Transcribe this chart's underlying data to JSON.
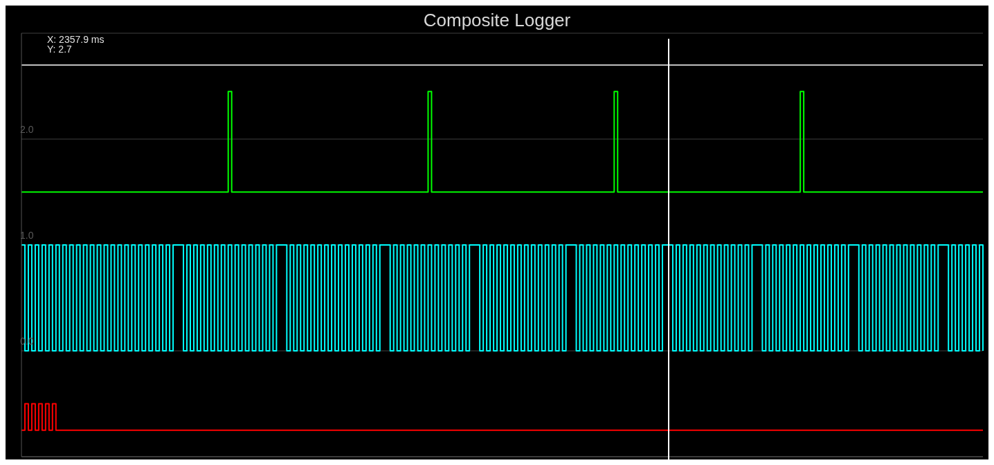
{
  "chart_data": {
    "type": "step",
    "title": "Composite Logger",
    "annotations": [
      "X: 2357.9 ms",
      "Y: 2.7"
    ],
    "categories": [
      null,
      null,
      null,
      null,
      null,
      null,
      null,
      null,
      null,
      null,
      null,
      null,
      null,
      null,
      null,
      null,
      null,
      null,
      null,
      null,
      null,
      null,
      null,
      null,
      null,
      null,
      null,
      null,
      null,
      null,
      null,
      null,
      null,
      null,
      null,
      null,
      null,
      null,
      null,
      null,
      null,
      null,
      null,
      null,
      null,
      null,
      null,
      null,
      null,
      null,
      null,
      null,
      null,
      null,
      null,
      null,
      null,
      null,
      null,
      null,
      null,
      null,
      null,
      null,
      null,
      null,
      null,
      null,
      null,
      null,
      null,
      null,
      null,
      null,
      null,
      null,
      null,
      null,
      null,
      null,
      null,
      null,
      null,
      null,
      null,
      null,
      null,
      null,
      null,
      null,
      null,
      null,
      null,
      null,
      null,
      null,
      null,
      null,
      null,
      null,
      null,
      null,
      null,
      null,
      null,
      null,
      null,
      null,
      null,
      null,
      null,
      null,
      null,
      null,
      null,
      null,
      null,
      null,
      null,
      null,
      null,
      null,
      null,
      null,
      null,
      null,
      null,
      null,
      null,
      null,
      null,
      null,
      null,
      null,
      null,
      null,
      null,
      null,
      null,
      null,
      null,
      null,
      null,
      null,
      null,
      null,
      null,
      null,
      null,
      null,
      null,
      null,
      null,
      null,
      null,
      null,
      null,
      null,
      null,
      null,
      null,
      null,
      null,
      null,
      null,
      null,
      null,
      null,
      null,
      null,
      null,
      null,
      null,
      null,
      null,
      null,
      null,
      null,
      null,
      null,
      null,
      null,
      null,
      null,
      null,
      null,
      null,
      null,
      null,
      null,
      null,
      null,
      null,
      null,
      null,
      null,
      null,
      null,
      null,
      null,
      null,
      null,
      null,
      null,
      null,
      null,
      null,
      null,
      null,
      null,
      null,
      null,
      null,
      null,
      null,
      null,
      null,
      null,
      null,
      null,
      null,
      null,
      null,
      null,
      null,
      null,
      null,
      null,
      null,
      null,
      null,
      null,
      null,
      null,
      null,
      null,
      null,
      null,
      null,
      null,
      null,
      null,
      null,
      null,
      null,
      null,
      null,
      null,
      null,
      null,
      null,
      null,
      null,
      null,
      null,
      null,
      null,
      null,
      null,
      null,
      null,
      null,
      null,
      null,
      null,
      null,
      null,
      null,
      null,
      null,
      null,
      null,
      null,
      null,
      null,
      null,
      null,
      null,
      null,
      null
    ],
    "series": [
      {
        "color": "#00ff00",
        "values": [
          1.5,
          1.5,
          1.5,
          1.5,
          1.5,
          1.5,
          1.5,
          1.5,
          1.5,
          1.5,
          1.5,
          1.5,
          1.5,
          1.5,
          1.5,
          1.5,
          1.5,
          1.5,
          1.5,
          1.5,
          1.5,
          1.5,
          1.5,
          1.5,
          1.5,
          1.5,
          1.5,
          1.5,
          1.5,
          1.5,
          1.5,
          1.5,
          1.5,
          1.5,
          1.5,
          1.5,
          1.5,
          1.5,
          1.5,
          1.5,
          1.5,
          1.5,
          1.5,
          1.5,
          1.5,
          1.5,
          1.5,
          1.5,
          1.5,
          1.5,
          1.5,
          1.5,
          1.5,
          1.5,
          1.5,
          1.5,
          1.5,
          1.5,
          1.5,
          1.5,
          2.45,
          1.5,
          1.5,
          1.5,
          1.5,
          1.5,
          1.5,
          1.5,
          1.5,
          1.5,
          1.5,
          1.5,
          1.5,
          1.5,
          1.5,
          1.5,
          1.5,
          1.5,
          1.5,
          1.5,
          1.5,
          1.5,
          1.5,
          1.5,
          1.5,
          1.5,
          1.5,
          1.5,
          1.5,
          1.5,
          1.5,
          1.5,
          1.5,
          1.5,
          1.5,
          1.5,
          1.5,
          1.5,
          1.5,
          1.5,
          1.5,
          1.5,
          1.5,
          1.5,
          1.5,
          1.5,
          1.5,
          1.5,
          1.5,
          1.5,
          1.5,
          1.5,
          1.5,
          1.5,
          1.5,
          1.5,
          1.5,
          1.5,
          2.45,
          1.5,
          1.5,
          1.5,
          1.5,
          1.5,
          1.5,
          1.5,
          1.5,
          1.5,
          1.5,
          1.5,
          1.5,
          1.5,
          1.5,
          1.5,
          1.5,
          1.5,
          1.5,
          1.5,
          1.5,
          1.5,
          1.5,
          1.5,
          1.5,
          1.5,
          1.5,
          1.5,
          1.5,
          1.5,
          1.5,
          1.5,
          1.5,
          1.5,
          1.5,
          1.5,
          1.5,
          1.5,
          1.5,
          1.5,
          1.5,
          1.5,
          1.5,
          1.5,
          1.5,
          1.5,
          1.5,
          1.5,
          1.5,
          1.5,
          1.5,
          1.5,
          1.5,
          1.5,
          2.45,
          1.5,
          1.5,
          1.5,
          1.5,
          1.5,
          1.5,
          1.5,
          1.5,
          1.5,
          1.5,
          1.5,
          1.5,
          1.5,
          1.5,
          1.5,
          1.5,
          1.5,
          1.5,
          1.5,
          1.5,
          1.5,
          1.5,
          1.5,
          1.5,
          1.5,
          1.5,
          1.5,
          1.5,
          1.5,
          1.5,
          1.5,
          1.5,
          1.5,
          1.5,
          1.5,
          1.5,
          1.5,
          1.5,
          1.5,
          1.5,
          1.5,
          1.5,
          1.5,
          1.5,
          1.5,
          1.5,
          1.5,
          1.5,
          1.5,
          1.5,
          1.5,
          1.5,
          1.5,
          2.45,
          1.5,
          1.5,
          1.5,
          1.5,
          1.5,
          1.5,
          1.5,
          1.5,
          1.5,
          1.5,
          1.5,
          1.5,
          1.5,
          1.5,
          1.5,
          1.5,
          1.5,
          1.5,
          1.5,
          1.5,
          1.5,
          1.5,
          1.5,
          1.5,
          1.5,
          1.5,
          1.5,
          1.5,
          1.5,
          1.5,
          1.5,
          1.5,
          1.5,
          1.5,
          1.5,
          1.5,
          1.5,
          1.5,
          1.5,
          1.5,
          1.5,
          1.5,
          1.5,
          1.5,
          1.5,
          1.5,
          1.5,
          1.5,
          1.5,
          1.5,
          1.5,
          1.5,
          1.5
        ]
      },
      {
        "color": "#00ffff",
        "values": [
          1,
          0,
          1,
          0,
          1,
          0,
          1,
          0,
          1,
          0,
          1,
          0,
          1,
          0,
          1,
          0,
          1,
          0,
          1,
          0,
          1,
          0,
          1,
          0,
          1,
          0,
          1,
          0,
          1,
          0,
          1,
          0,
          1,
          0,
          1,
          0,
          1,
          0,
          1,
          0,
          1,
          0,
          1,
          0,
          1,
          1,
          1,
          0,
          1,
          0,
          1,
          0,
          1,
          0,
          1,
          0,
          1,
          0,
          1,
          0,
          1,
          0,
          1,
          0,
          1,
          0,
          1,
          0,
          1,
          0,
          1,
          0,
          1,
          0,
          1,
          1,
          1,
          0,
          1,
          0,
          1,
          0,
          1,
          0,
          1,
          0,
          1,
          0,
          1,
          0,
          1,
          0,
          1,
          0,
          1,
          0,
          1,
          0,
          1,
          0,
          1,
          0,
          1,
          0,
          1,
          1,
          1,
          0,
          1,
          0,
          1,
          0,
          1,
          0,
          1,
          0,
          1,
          0,
          1,
          0,
          1,
          0,
          1,
          0,
          1,
          0,
          1,
          0,
          1,
          0,
          1,
          1,
          1,
          0,
          1,
          0,
          1,
          0,
          1,
          0,
          1,
          0,
          1,
          0,
          1,
          0,
          1,
          0,
          1,
          0,
          1,
          0,
          1,
          0,
          1,
          0,
          1,
          0,
          1,
          1,
          1,
          0,
          1,
          0,
          1,
          0,
          1,
          0,
          1,
          0,
          1,
          0,
          1,
          0,
          1,
          0,
          1,
          0,
          1,
          0,
          1,
          0,
          1,
          0,
          1,
          0,
          1,
          1,
          1,
          0,
          1,
          0,
          1,
          0,
          1,
          0,
          1,
          0,
          1,
          0,
          1,
          0,
          1,
          0,
          1,
          0,
          1,
          0,
          1,
          0,
          1,
          0,
          1,
          1,
          1,
          0,
          1,
          0,
          1,
          0,
          1,
          0,
          1,
          0,
          1,
          0,
          1,
          0,
          1,
          0,
          1,
          0,
          1,
          0,
          1,
          0,
          1,
          0,
          1,
          0,
          1,
          1,
          1,
          0,
          1,
          0,
          1,
          0,
          1,
          0,
          1,
          0,
          1,
          0,
          1,
          0,
          1,
          0,
          1,
          0,
          1,
          0,
          1,
          0,
          1,
          0,
          1,
          1,
          1,
          0,
          1,
          0,
          1,
          0,
          1,
          0,
          1,
          0,
          1,
          0
        ]
      },
      {
        "color": "#ff0000",
        "values": [
          -0.75,
          -0.5,
          -0.75,
          -0.5,
          -0.75,
          -0.5,
          -0.75,
          -0.5,
          -0.75,
          -0.5,
          -0.75,
          -0.75,
          -0.75,
          -0.75,
          -0.75,
          -0.75,
          -0.75,
          -0.75,
          -0.75,
          -0.75,
          -0.75,
          -0.75,
          -0.75,
          -0.75,
          -0.75,
          -0.75,
          -0.75,
          -0.75,
          -0.75,
          -0.75,
          -0.75,
          -0.75,
          -0.75,
          -0.75,
          -0.75,
          -0.75,
          -0.75,
          -0.75,
          -0.75,
          -0.75,
          -0.75,
          -0.75,
          -0.75,
          -0.75,
          -0.75,
          -0.75,
          -0.75,
          -0.75,
          -0.75,
          -0.75,
          -0.75,
          -0.75,
          -0.75,
          -0.75,
          -0.75,
          -0.75,
          -0.75,
          -0.75,
          -0.75,
          -0.75,
          -0.75,
          -0.75,
          -0.75,
          -0.75,
          -0.75,
          -0.75,
          -0.75,
          -0.75,
          -0.75,
          -0.75,
          -0.75,
          -0.75,
          -0.75,
          -0.75,
          -0.75,
          -0.75,
          -0.75,
          -0.75,
          -0.75,
          -0.75,
          -0.75,
          -0.75,
          -0.75,
          -0.75,
          -0.75,
          -0.75,
          -0.75,
          -0.75,
          -0.75,
          -0.75,
          -0.75,
          -0.75,
          -0.75,
          -0.75,
          -0.75,
          -0.75,
          -0.75,
          -0.75,
          -0.75,
          -0.75,
          -0.75,
          -0.75,
          -0.75,
          -0.75,
          -0.75,
          -0.75,
          -0.75,
          -0.75,
          -0.75,
          -0.75,
          -0.75,
          -0.75,
          -0.75,
          -0.75,
          -0.75,
          -0.75,
          -0.75,
          -0.75,
          -0.75,
          -0.75,
          -0.75,
          -0.75,
          -0.75,
          -0.75,
          -0.75,
          -0.75,
          -0.75,
          -0.75,
          -0.75,
          -0.75,
          -0.75,
          -0.75,
          -0.75,
          -0.75,
          -0.75,
          -0.75,
          -0.75,
          -0.75,
          -0.75,
          -0.75,
          -0.75,
          -0.75,
          -0.75,
          -0.75,
          -0.75,
          -0.75,
          -0.75,
          -0.75,
          -0.75,
          -0.75,
          -0.75,
          -0.75,
          -0.75,
          -0.75,
          -0.75,
          -0.75,
          -0.75,
          -0.75,
          -0.75,
          -0.75,
          -0.75,
          -0.75,
          -0.75,
          -0.75,
          -0.75,
          -0.75,
          -0.75,
          -0.75,
          -0.75,
          -0.75,
          -0.75,
          -0.75,
          -0.75,
          -0.75,
          -0.75,
          -0.75,
          -0.75,
          -0.75,
          -0.75,
          -0.75,
          -0.75,
          -0.75,
          -0.75,
          -0.75,
          -0.75,
          -0.75,
          -0.75,
          -0.75,
          -0.75,
          -0.75,
          -0.75,
          -0.75,
          -0.75,
          -0.75,
          -0.75,
          -0.75,
          -0.75,
          -0.75,
          -0.75,
          -0.75,
          -0.75,
          -0.75,
          -0.75,
          -0.75,
          -0.75,
          -0.75,
          -0.75,
          -0.75,
          -0.75,
          -0.75,
          -0.75,
          -0.75,
          -0.75,
          -0.75,
          -0.75,
          -0.75,
          -0.75,
          -0.75,
          -0.75,
          -0.75,
          -0.75,
          -0.75,
          -0.75,
          -0.75,
          -0.75,
          -0.75,
          -0.75,
          -0.75,
          -0.75,
          -0.75,
          -0.75,
          -0.75,
          -0.75,
          -0.75,
          -0.75,
          -0.75,
          -0.75,
          -0.75,
          -0.75,
          -0.75,
          -0.75,
          -0.75,
          -0.75,
          -0.75,
          -0.75,
          -0.75,
          -0.75,
          -0.75,
          -0.75,
          -0.75,
          -0.75,
          -0.75,
          -0.75,
          -0.75,
          -0.75,
          -0.75,
          -0.75,
          -0.75,
          -0.75,
          -0.75,
          -0.75,
          -0.75,
          -0.75,
          -0.75,
          -0.75,
          -0.75,
          -0.75,
          -0.75,
          -0.75,
          -0.75,
          -0.75,
          -0.75,
          -0.75,
          -0.75,
          -0.75,
          -0.75,
          -0.75,
          -0.75,
          -0.75,
          -0.75
        ]
      }
    ],
    "ylim": [
      -1,
      3
    ],
    "yticks": [
      {
        "value": -1,
        "label": null
      },
      {
        "value": 0,
        "label": "0.0"
      },
      {
        "value": 1,
        "label": "1.0"
      },
      {
        "value": 2,
        "label": "2.0"
      },
      {
        "value": 3,
        "label": null
      }
    ],
    "ref_lines": [
      {
        "axis": "y",
        "value": 2.7,
        "color": "#ffffff"
      }
    ],
    "grid": "y",
    "tick_labels": "y"
  }
}
